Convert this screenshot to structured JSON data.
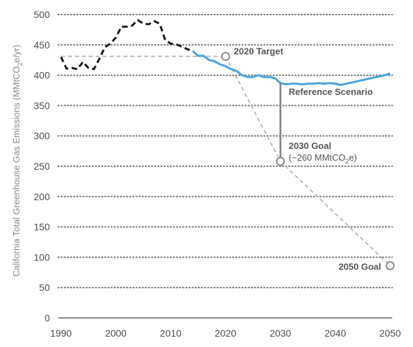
{
  "chart_data": {
    "type": "line",
    "xlabel": "",
    "ylabel_parts": [
      "California Total Greenhouse Gas Emissions (MMtCO",
      "2",
      "e/yr)"
    ],
    "xlim": [
      1990,
      2050
    ],
    "ylim": [
      0,
      500
    ],
    "x_ticks": [
      1990,
      2000,
      2010,
      2020,
      2030,
      2040,
      2050
    ],
    "y_ticks": [
      0,
      50,
      100,
      150,
      200,
      250,
      300,
      350,
      400,
      450,
      500
    ],
    "grid": "horizontal dotted",
    "series": [
      {
        "style": "dashed",
        "color": "#1a1a1a",
        "points": [
          [
            1990,
            430
          ],
          [
            1991,
            411
          ],
          [
            1992,
            412
          ],
          [
            1993,
            410
          ],
          [
            1994,
            422
          ],
          [
            1995,
            412
          ],
          [
            1996,
            410
          ],
          [
            1997,
            427
          ],
          [
            1998,
            446
          ],
          [
            1999,
            452
          ],
          [
            2000,
            462
          ],
          [
            2001,
            480
          ],
          [
            2002,
            480
          ],
          [
            2003,
            482
          ],
          [
            2004,
            491
          ],
          [
            2005,
            485
          ],
          [
            2006,
            484
          ],
          [
            2007,
            489
          ],
          [
            2008,
            485
          ],
          [
            2009,
            458
          ],
          [
            2010,
            452
          ],
          [
            2011,
            451
          ],
          [
            2012,
            447
          ],
          [
            2013,
            443
          ],
          [
            2014,
            440
          ]
        ]
      },
      {
        "name": "Reference Scenario",
        "style": "solid",
        "color": "#4ba3d9",
        "points": [
          [
            2014,
            440
          ],
          [
            2015,
            432
          ],
          [
            2016,
            432
          ],
          [
            2017,
            425
          ],
          [
            2018,
            423
          ],
          [
            2019,
            418
          ],
          [
            2020,
            415
          ],
          [
            2021,
            410
          ],
          [
            2022,
            407
          ],
          [
            2023,
            400
          ],
          [
            2024,
            397
          ],
          [
            2025,
            397
          ],
          [
            2026,
            400
          ],
          [
            2027,
            397
          ],
          [
            2028,
            397
          ],
          [
            2029,
            395
          ],
          [
            2030,
            387
          ],
          [
            2031,
            385
          ],
          [
            2032,
            386
          ],
          [
            2033,
            386
          ],
          [
            2034,
            385
          ],
          [
            2035,
            386
          ],
          [
            2036,
            386
          ],
          [
            2037,
            387
          ],
          [
            2038,
            386
          ],
          [
            2039,
            387
          ],
          [
            2040,
            386
          ],
          [
            2041,
            384
          ],
          [
            2042,
            386
          ],
          [
            2043,
            388
          ],
          [
            2044,
            390
          ],
          [
            2045,
            392
          ],
          [
            2046,
            394
          ],
          [
            2047,
            396
          ],
          [
            2048,
            398
          ],
          [
            2049,
            400
          ],
          [
            2050,
            403
          ]
        ]
      },
      {
        "style": "dashed",
        "color": "#b5b5b5",
        "points": [
          [
            1990,
            431
          ],
          [
            2020,
            431
          ]
        ]
      },
      {
        "style": "dashed",
        "color": "#b5b5b5",
        "points": [
          [
            2020,
            431
          ],
          [
            2030,
            258
          ],
          [
            2050,
            86
          ]
        ]
      }
    ],
    "markers": [
      {
        "label": "2020 Target",
        "x": 2020,
        "y": 431
      },
      {
        "label": "2030 Goal",
        "sublabel_parts": [
          "(~260 MMtCO",
          "2",
          "e)"
        ],
        "x": 2030,
        "y": 258
      },
      {
        "label": "2050 Goal",
        "x": 2050,
        "y": 86
      }
    ],
    "annotation": {
      "label": "Reference Scenario",
      "x": 2030,
      "y_from": 387,
      "y_to": 258
    }
  }
}
